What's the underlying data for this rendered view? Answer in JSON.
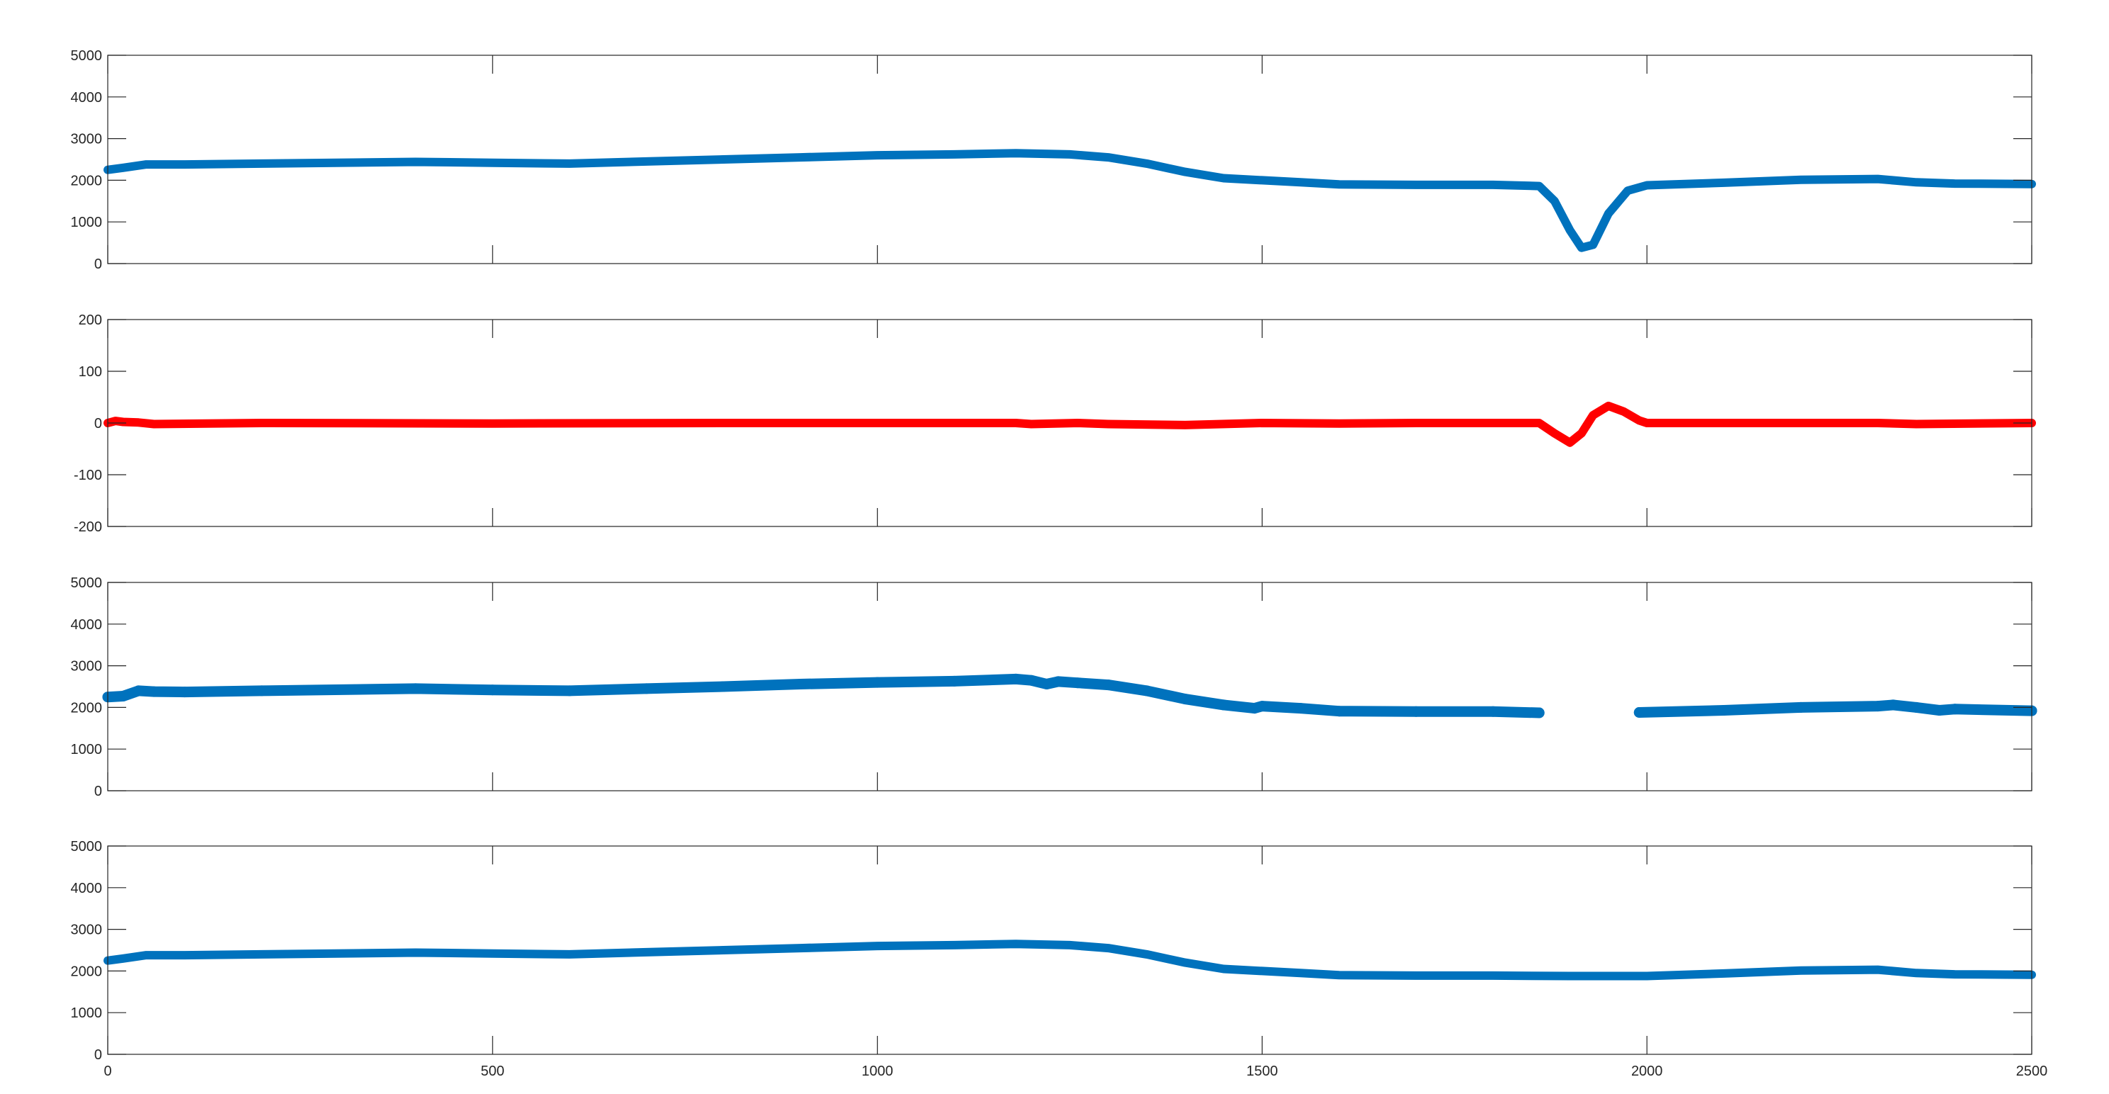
{
  "chart_data": [
    {
      "type": "line",
      "xlim": [
        0,
        2500
      ],
      "ylim": [
        0,
        5000
      ],
      "yticks": [
        0,
        1000,
        2000,
        3000,
        4000,
        5000
      ],
      "xticks": [
        0,
        500,
        1000,
        1500,
        2000,
        2500
      ],
      "show_xtick_labels": false,
      "grid": false,
      "series": [
        {
          "color": "#0072BD",
          "points": [
            [
              0,
              2250
            ],
            [
              20,
              2300
            ],
            [
              50,
              2380
            ],
            [
              100,
              2380
            ],
            [
              200,
              2400
            ],
            [
              400,
              2440
            ],
            [
              500,
              2420
            ],
            [
              600,
              2400
            ],
            [
              700,
              2450
            ],
            [
              800,
              2500
            ],
            [
              900,
              2550
            ],
            [
              1000,
              2600
            ],
            [
              1100,
              2620
            ],
            [
              1180,
              2650
            ],
            [
              1250,
              2620
            ],
            [
              1300,
              2550
            ],
            [
              1350,
              2400
            ],
            [
              1400,
              2200
            ],
            [
              1450,
              2050
            ],
            [
              1500,
              2000
            ],
            [
              1550,
              1950
            ],
            [
              1600,
              1900
            ],
            [
              1700,
              1890
            ],
            [
              1800,
              1890
            ],
            [
              1860,
              1860
            ],
            [
              1880,
              1500
            ],
            [
              1900,
              800
            ],
            [
              1915,
              380
            ],
            [
              1930,
              450
            ],
            [
              1950,
              1200
            ],
            [
              1975,
              1750
            ],
            [
              2000,
              1880
            ],
            [
              2100,
              1940
            ],
            [
              2200,
              2010
            ],
            [
              2300,
              2030
            ],
            [
              2350,
              1950
            ],
            [
              2400,
              1920
            ],
            [
              2500,
              1910
            ]
          ]
        }
      ]
    },
    {
      "type": "line",
      "xlim": [
        0,
        2500
      ],
      "ylim": [
        -200,
        200
      ],
      "yticks": [
        -200,
        -100,
        0,
        100,
        200
      ],
      "xticks": [
        0,
        500,
        1000,
        1500,
        2000,
        2500
      ],
      "show_xtick_labels": false,
      "grid": false,
      "series": [
        {
          "color": "#FF0000",
          "points": [
            [
              0,
              0
            ],
            [
              10,
              4
            ],
            [
              20,
              2
            ],
            [
              40,
              1
            ],
            [
              60,
              -2
            ],
            [
              200,
              0
            ],
            [
              500,
              -1
            ],
            [
              800,
              0
            ],
            [
              1000,
              0
            ],
            [
              1180,
              0
            ],
            [
              1200,
              -2
            ],
            [
              1260,
              0
            ],
            [
              1300,
              -2
            ],
            [
              1400,
              -4
            ],
            [
              1500,
              0
            ],
            [
              1600,
              -1
            ],
            [
              1700,
              0
            ],
            [
              1860,
              0
            ],
            [
              1880,
              -20
            ],
            [
              1900,
              -38
            ],
            [
              1915,
              -20
            ],
            [
              1930,
              15
            ],
            [
              1950,
              33
            ],
            [
              1970,
              22
            ],
            [
              1990,
              5
            ],
            [
              2000,
              0
            ],
            [
              2300,
              0
            ],
            [
              2350,
              -2
            ],
            [
              2500,
              0
            ]
          ]
        }
      ]
    },
    {
      "type": "scatter",
      "xlim": [
        0,
        2500
      ],
      "ylim": [
        0,
        5000
      ],
      "yticks": [
        0,
        1000,
        2000,
        3000,
        4000,
        5000
      ],
      "xticks": [
        0,
        500,
        1000,
        1500,
        2000,
        2500
      ],
      "show_xtick_labels": false,
      "grid": false,
      "series": [
        {
          "color": "#0072BD",
          "segments": [
            [
              [
                0,
                2250
              ],
              [
                20,
                2270
              ],
              [
                40,
                2400
              ],
              [
                60,
                2380
              ],
              [
                100,
                2370
              ],
              [
                200,
                2400
              ],
              [
                400,
                2450
              ],
              [
                500,
                2420
              ],
              [
                600,
                2400
              ],
              [
                700,
                2450
              ],
              [
                800,
                2500
              ],
              [
                900,
                2560
              ],
              [
                1000,
                2600
              ],
              [
                1100,
                2630
              ],
              [
                1180,
                2680
              ],
              [
                1200,
                2650
              ],
              [
                1220,
                2560
              ],
              [
                1235,
                2620
              ],
              [
                1260,
                2590
              ],
              [
                1300,
                2540
              ],
              [
                1350,
                2400
              ],
              [
                1400,
                2200
              ],
              [
                1450,
                2060
              ],
              [
                1490,
                1980
              ],
              [
                1500,
                2030
              ],
              [
                1550,
                1980
              ],
              [
                1600,
                1910
              ],
              [
                1700,
                1900
              ],
              [
                1800,
                1900
              ],
              [
                1860,
                1870
              ]
            ],
            [
              [
                1990,
                1880
              ],
              [
                2100,
                1930
              ],
              [
                2200,
                2000
              ],
              [
                2300,
                2030
              ],
              [
                2320,
                2060
              ],
              [
                2350,
                2000
              ],
              [
                2380,
                1930
              ],
              [
                2400,
                1960
              ],
              [
                2500,
                1920
              ]
            ]
          ]
        }
      ]
    },
    {
      "type": "line",
      "xlim": [
        0,
        2500
      ],
      "ylim": [
        0,
        5000
      ],
      "yticks": [
        0,
        1000,
        2000,
        3000,
        4000,
        5000
      ],
      "xticks": [
        0,
        500,
        1000,
        1500,
        2000,
        2500
      ],
      "show_xtick_labels": true,
      "grid": false,
      "series": [
        {
          "color": "#0072BD",
          "points": [
            [
              0,
              2250
            ],
            [
              20,
              2300
            ],
            [
              50,
              2380
            ],
            [
              100,
              2380
            ],
            [
              200,
              2400
            ],
            [
              400,
              2440
            ],
            [
              500,
              2420
            ],
            [
              600,
              2400
            ],
            [
              700,
              2450
            ],
            [
              800,
              2500
            ],
            [
              900,
              2550
            ],
            [
              1000,
              2600
            ],
            [
              1100,
              2620
            ],
            [
              1180,
              2650
            ],
            [
              1250,
              2620
            ],
            [
              1300,
              2550
            ],
            [
              1350,
              2400
            ],
            [
              1400,
              2200
            ],
            [
              1450,
              2050
            ],
            [
              1500,
              2000
            ],
            [
              1550,
              1950
            ],
            [
              1600,
              1900
            ],
            [
              1700,
              1890
            ],
            [
              1800,
              1890
            ],
            [
              1900,
              1880
            ],
            [
              2000,
              1880
            ],
            [
              2100,
              1940
            ],
            [
              2200,
              2010
            ],
            [
              2300,
              2030
            ],
            [
              2350,
              1950
            ],
            [
              2400,
              1920
            ],
            [
              2500,
              1910
            ]
          ]
        }
      ]
    }
  ]
}
